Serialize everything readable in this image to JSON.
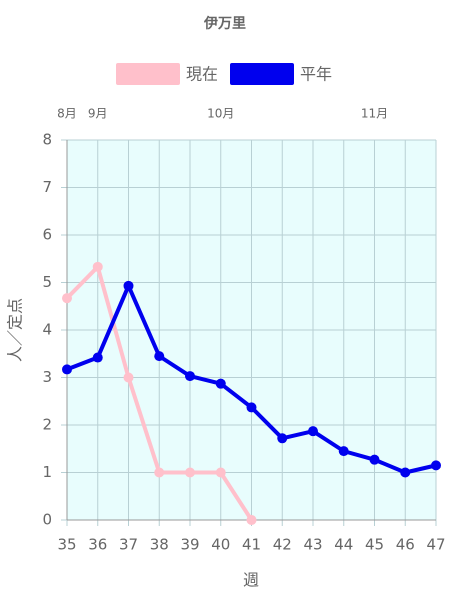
{
  "chart_data": {
    "type": "line",
    "title": "伊万里",
    "x": [
      35,
      36,
      37,
      38,
      39,
      40,
      41,
      42,
      43,
      44,
      45,
      46,
      47
    ],
    "series": [
      {
        "name": "現在",
        "color": "#ffc0cb",
        "values": [
          4.67,
          5.33,
          3,
          1,
          1,
          1,
          0,
          null,
          null,
          null,
          null,
          null,
          null
        ]
      },
      {
        "name": "平年",
        "color": "#0000ee",
        "values": [
          3.17,
          3.42,
          4.93,
          3.45,
          3.03,
          2.87,
          2.37,
          1.72,
          1.87,
          1.45,
          1.27,
          1.0,
          1.15
        ]
      }
    ],
    "month_labels": [
      {
        "week": 35,
        "label": "8月"
      },
      {
        "week": 36,
        "label": "9月"
      },
      {
        "week": 40,
        "label": "10月"
      },
      {
        "week": 45,
        "label": "11月"
      }
    ],
    "xlim": [
      35,
      47
    ],
    "xticks": [
      35,
      36,
      37,
      38,
      39,
      40,
      41,
      42,
      43,
      44,
      45,
      46,
      47
    ],
    "ylim": [
      0,
      8
    ],
    "yticks": [
      0,
      1,
      2,
      3,
      4,
      5,
      6,
      7,
      8
    ],
    "xlabel": "週",
    "ylabel": "人／定点",
    "grid": true,
    "legend": "top",
    "background": "#e8fdfd"
  }
}
